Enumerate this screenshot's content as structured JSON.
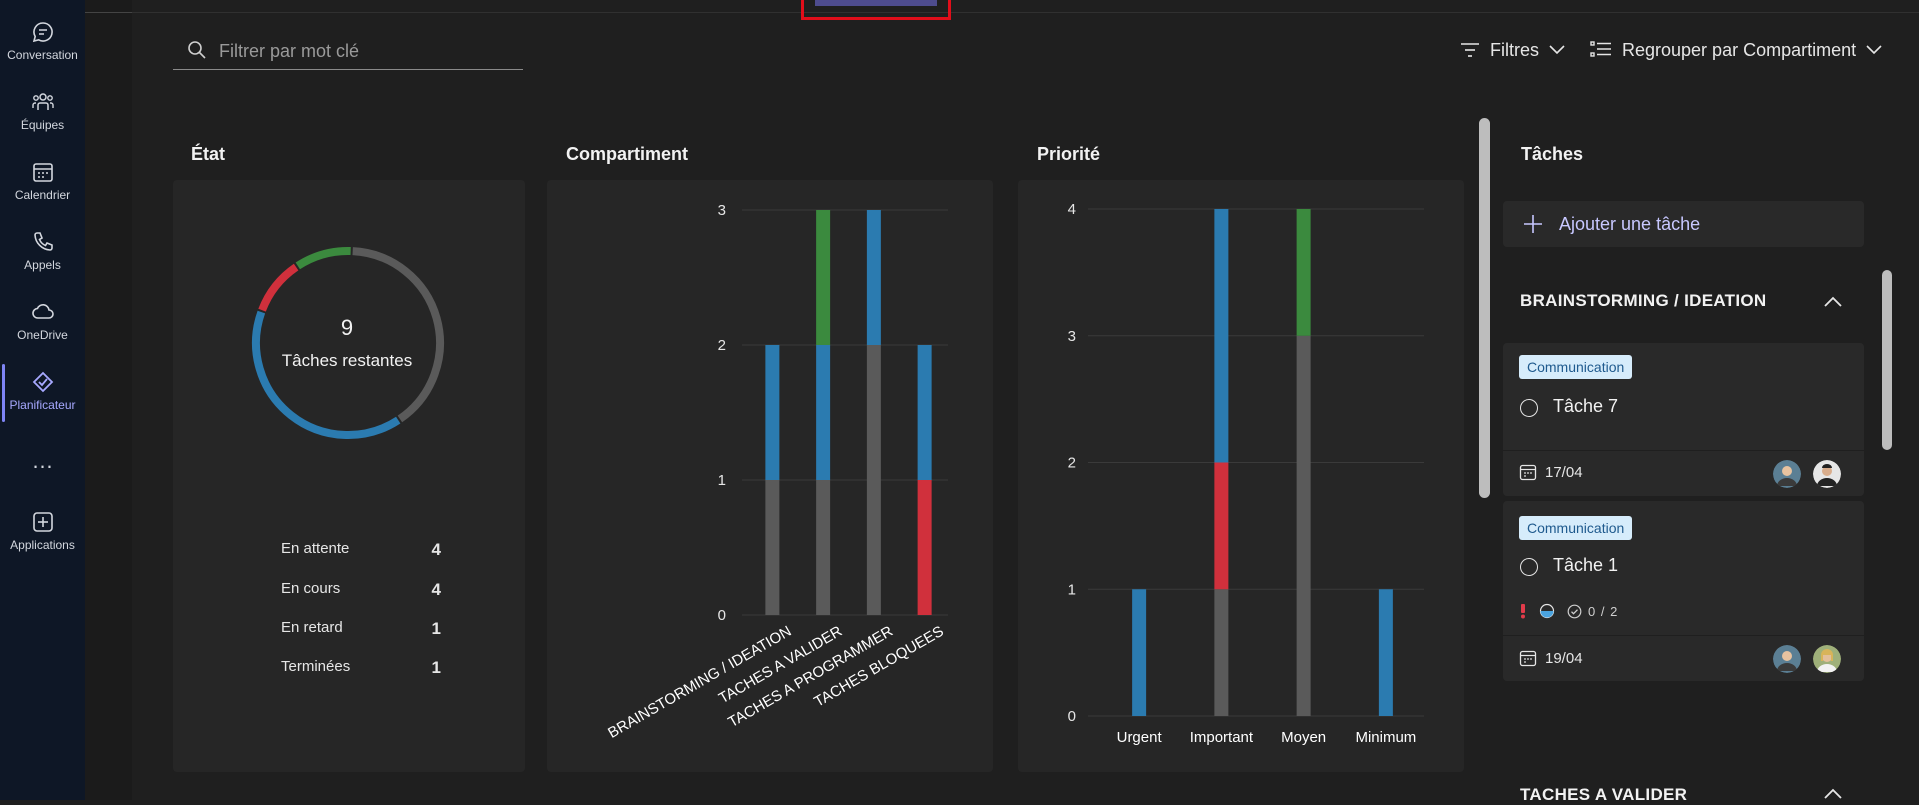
{
  "rail": {
    "items": [
      {
        "label": "Conversation",
        "icon": "chat-icon"
      },
      {
        "label": "Équipes",
        "icon": "teams-icon"
      },
      {
        "label": "Calendrier",
        "icon": "calendar-icon"
      },
      {
        "label": "Appels",
        "icon": "phone-icon"
      },
      {
        "label": "OneDrive",
        "icon": "cloud-icon"
      },
      {
        "label": "Planificateur",
        "icon": "planner-icon",
        "active": true
      },
      {
        "label": "…",
        "icon": "more-icon"
      },
      {
        "label": "Applications",
        "icon": "add-app-icon"
      }
    ]
  },
  "toolbar": {
    "search_placeholder": "Filtrer par mot clé",
    "filters_label": "Filtres",
    "group_label": "Regrouper par Compartiment"
  },
  "panels": {
    "state": {
      "title": "État",
      "center_number": "9",
      "center_label": "Tâches restantes",
      "stats": [
        {
          "label": "En attente",
          "value": "4"
        },
        {
          "label": "En cours",
          "value": "4"
        },
        {
          "label": "En retard",
          "value": "1"
        },
        {
          "label": "Terminées",
          "value": "1"
        }
      ]
    },
    "bucket": {
      "title": "Compartiment"
    },
    "priority": {
      "title": "Priorité"
    }
  },
  "colors": {
    "not_started": "#5a5a5a",
    "in_progress": "#2b7bb0",
    "late": "#d0303c",
    "done": "#3b8a3e",
    "accent": "#7f85f5"
  },
  "chart_data": [
    {
      "type": "pie",
      "title": "État",
      "slices": [
        {
          "name": "En attente",
          "value": 4,
          "color": "#5a5a5a"
        },
        {
          "name": "En cours",
          "value": 4,
          "color": "#2b7bb0"
        },
        {
          "name": "En retard",
          "value": 1,
          "color": "#d0303c"
        },
        {
          "name": "Terminées",
          "value": 1,
          "color": "#3b8a3e"
        }
      ]
    },
    {
      "type": "bar",
      "stacked": true,
      "title": "Compartiment",
      "categories": [
        "BRAINSTORMING / IDEATION",
        "TACHES A VALIDER",
        "TACHES A PROGRAMMER",
        "TACHES BLOQUEES"
      ],
      "series": [
        {
          "name": "En attente",
          "color": "#5a5a5a",
          "values": [
            1,
            1,
            2,
            0
          ]
        },
        {
          "name": "En retard",
          "color": "#d0303c",
          "values": [
            0,
            0,
            0,
            1
          ]
        },
        {
          "name": "En cours",
          "color": "#2b7bb0",
          "values": [
            1,
            1,
            1,
            1
          ]
        },
        {
          "name": "Terminées",
          "color": "#3b8a3e",
          "values": [
            0,
            1,
            0,
            0
          ]
        }
      ],
      "yticks": [
        0,
        1,
        2,
        3
      ],
      "ylim": [
        0,
        3
      ]
    },
    {
      "type": "bar",
      "stacked": true,
      "title": "Priorité",
      "categories": [
        "Urgent",
        "Important",
        "Moyen",
        "Minimum"
      ],
      "series": [
        {
          "name": "En attente",
          "color": "#5a5a5a",
          "values": [
            0,
            1,
            3,
            0
          ]
        },
        {
          "name": "En retard",
          "color": "#d0303c",
          "values": [
            0,
            1,
            0,
            0
          ]
        },
        {
          "name": "En cours",
          "color": "#2b7bb0",
          "values": [
            1,
            2,
            0,
            1
          ]
        },
        {
          "name": "Terminées",
          "color": "#3b8a3e",
          "values": [
            0,
            0,
            1,
            0
          ]
        }
      ],
      "yticks": [
        0,
        1,
        2,
        3,
        4
      ],
      "ylim": [
        0,
        4
      ]
    }
  ],
  "tasks_panel": {
    "title": "Tâches",
    "add_label": "Ajouter une tâche",
    "buckets": [
      {
        "name": "BRAINSTORMING / IDEATION",
        "tasks": [
          {
            "label": "Communication",
            "name": "Tâche 7",
            "due": "17/04"
          },
          {
            "label": "Communication",
            "name": "Tâche 1",
            "checklist": "0 / 2",
            "due": "19/04"
          }
        ]
      },
      {
        "name": "TACHES A VALIDER"
      }
    ]
  }
}
